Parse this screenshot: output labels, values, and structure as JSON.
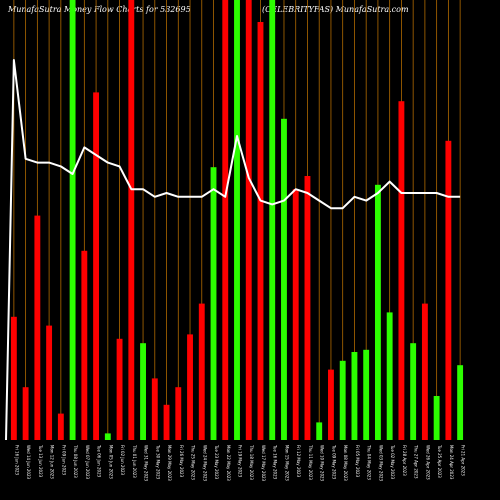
{
  "chart_data": {
    "type": "bar",
    "title_left": "MunafaSutra  Money Flow  Charts for 532695",
    "title_right": "(CELEBRITYFAS) MunafaSutra.com",
    "ylim": [
      0,
      100
    ],
    "colors": {
      "red": "#ff0000",
      "green": "#2cff00",
      "white": "#ffffff",
      "vline": "#b06a00",
      "background": "#000000"
    },
    "bars": [
      {
        "date": "Fri 16 Jun 2023",
        "value": 28,
        "color": "red"
      },
      {
        "date": "Wed 14 Jun 2023",
        "value": 12,
        "color": "red"
      },
      {
        "date": "Tue 13 Jun 2023",
        "value": 51,
        "color": "red"
      },
      {
        "date": "Mon 12 Jun 2023",
        "value": 26,
        "color": "red"
      },
      {
        "date": "Fri 09 Jun 2023",
        "value": 6,
        "color": "red"
      },
      {
        "date": "Thu 08 Jun 2023",
        "value": 100,
        "color": "green"
      },
      {
        "date": "Wed 07 Jun 2023",
        "value": 43,
        "color": "red"
      },
      {
        "date": "Tue 06 Jun 2023",
        "value": 79,
        "color": "red"
      },
      {
        "date": "Mon 05 Jun 2023",
        "value": 1.5,
        "color": "green"
      },
      {
        "date": "Fri 02 Jun 2023",
        "value": 23,
        "color": "red"
      },
      {
        "date": "Thu 01 Jun 2023",
        "value": 100,
        "color": "red"
      },
      {
        "date": "Wed 31 May 2023",
        "value": 22,
        "color": "green"
      },
      {
        "date": "Tue 30 May 2023",
        "value": 14,
        "color": "red"
      },
      {
        "date": "Mon 29 May 2023",
        "value": 8,
        "color": "red"
      },
      {
        "date": "Fri 26 May 2023",
        "value": 12,
        "color": "red"
      },
      {
        "date": "Thu 25 May 2023",
        "value": 24,
        "color": "red"
      },
      {
        "date": "Wed 24 May 2023",
        "value": 31,
        "color": "red"
      },
      {
        "date": "Tue 23 May 2023",
        "value": 62,
        "color": "green"
      },
      {
        "date": "Mon 22 May 2023",
        "value": 100,
        "color": "red"
      },
      {
        "date": "Fri 19 May 2023",
        "value": 100,
        "color": "green"
      },
      {
        "date": "Thu 18 May 2023",
        "value": 100,
        "color": "red"
      },
      {
        "date": "Wed 17 May 2023",
        "value": 95,
        "color": "red"
      },
      {
        "date": "Tue 16 May 2023",
        "value": 100,
        "color": "green"
      },
      {
        "date": "Mon 15 May 2023",
        "value": 73,
        "color": "green"
      },
      {
        "date": "Fri 12 May 2023",
        "value": 57,
        "color": "red"
      },
      {
        "date": "Thu 11 May 2023",
        "value": 60,
        "color": "red"
      },
      {
        "date": "Wed 10 May 2023",
        "value": 4,
        "color": "green"
      },
      {
        "date": "Tue 09 May 2023",
        "value": 16,
        "color": "red"
      },
      {
        "date": "Mon 08 May 2023",
        "value": 18,
        "color": "green"
      },
      {
        "date": "Fri 05 May 2023",
        "value": 20,
        "color": "green"
      },
      {
        "date": "Thu 04 May 2023",
        "value": 20.5,
        "color": "green"
      },
      {
        "date": "Wed 03 May 2023",
        "value": 58,
        "color": "green"
      },
      {
        "date": "Tue 02 May 2023",
        "value": 29,
        "color": "green"
      },
      {
        "date": "Fri 28 Apr 2023",
        "value": 77,
        "color": "red"
      },
      {
        "date": "Thu 27 Apr 2023",
        "value": 22,
        "color": "green"
      },
      {
        "date": "Wed 26 Apr 2023",
        "value": 31,
        "color": "red"
      },
      {
        "date": "Tue 25 Apr 2023",
        "value": 10,
        "color": "green"
      },
      {
        "date": "Mon 24 Apr 2023",
        "value": 68,
        "color": "red"
      },
      {
        "date": "Fri 21 Apr 2023",
        "value": 17,
        "color": "green"
      }
    ],
    "line": {
      "color": "white",
      "values": [
        100,
        74,
        73,
        73,
        72,
        70,
        77,
        75,
        73,
        72,
        66,
        66,
        64,
        65,
        64,
        64,
        64,
        66,
        64,
        80,
        69,
        63,
        62,
        63,
        66,
        65,
        63,
        61,
        61,
        64,
        63,
        65,
        68,
        65,
        65,
        65,
        65,
        64,
        64
      ]
    }
  }
}
